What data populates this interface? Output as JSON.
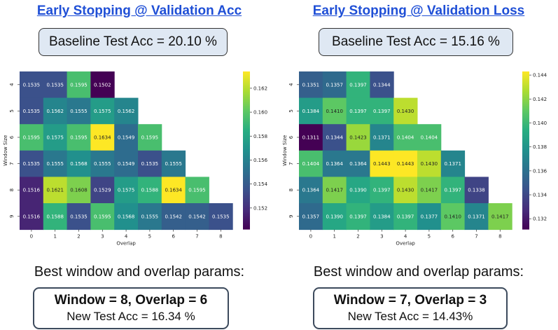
{
  "panels": [
    {
      "heading": "Early Stopping @ Validation Acc",
      "baseline": "Baseline Test Acc = 20.10 %",
      "best_title": "Best window and overlap params:",
      "result_line1": "Window = 8, Overlap = 6",
      "result_line2": "New Test Acc = 16.34 %"
    },
    {
      "heading": "Early Stopping @ Validation Loss",
      "baseline": "Baseline Test Acc = 15.16 %",
      "best_title": "Best window and overlap params:",
      "result_line1": "Window = 7, Overlap = 3",
      "result_line2": "New Test Acc =  14.43%"
    }
  ],
  "chart_data": [
    {
      "type": "heatmap",
      "colormap": "viridis",
      "xlabel": "Overlap",
      "ylabel": "Window Size",
      "x_ticks": [
        "0",
        "1",
        "2",
        "3",
        "4",
        "5",
        "6",
        "7",
        "8"
      ],
      "y_ticks": [
        "4",
        "5",
        "6",
        "7",
        "8",
        "9"
      ],
      "values": [
        [
          "0.1535",
          "0.1535",
          "0.1595",
          "0.1502",
          null,
          null,
          null,
          null,
          null
        ],
        [
          "0.1535",
          "0.1562",
          "0.1555",
          "0.1575",
          "0.1562",
          null,
          null,
          null,
          null
        ],
        [
          "0.1595",
          "0.1575",
          "0.1595",
          "0.1634",
          "0.1549",
          "0.1595",
          null,
          null,
          null
        ],
        [
          "0.1535",
          "0.1555",
          "0.1568",
          "0.1555",
          "0.1549",
          "0.1535",
          "0.1555",
          null,
          null
        ],
        [
          "0.1516",
          "0.1621",
          "0.1608",
          "0.1529",
          "0.1575",
          "0.1588",
          "0.1634",
          "0.1595",
          null
        ],
        [
          "0.1516",
          "0.1588",
          "0.1535",
          "0.1595",
          "0.1568",
          "0.1555",
          "0.1542",
          "0.1542",
          "0.1535"
        ]
      ],
      "vmin": 0.1502,
      "vmax": 0.1634,
      "colorbar_ticks": [
        "0.152",
        "0.154",
        "0.156",
        "0.158",
        "0.160",
        "0.162"
      ]
    },
    {
      "type": "heatmap",
      "colormap": "viridis",
      "xlabel": "Overlap",
      "ylabel": "Window Size",
      "x_ticks": [
        "0",
        "1",
        "2",
        "3",
        "4",
        "5",
        "6",
        "7",
        "8"
      ],
      "y_ticks": [
        "4",
        "5",
        "6",
        "7",
        "8",
        "9"
      ],
      "values": [
        [
          "0.1351",
          "0.1357",
          "0.1397",
          "0.1344",
          null,
          null,
          null,
          null,
          null
        ],
        [
          "0.1384",
          "0.1410",
          "0.1397",
          "0.1397",
          "0.1430",
          null,
          null,
          null,
          null
        ],
        [
          "0.1311",
          "0.1344",
          "0.1423",
          "0.1371",
          "0.1404",
          "0.1404",
          null,
          null,
          null
        ],
        [
          "0.1404",
          "0.1364",
          "0.1364",
          "0.1443",
          "0.1443",
          "0.1430",
          "0.1371",
          null,
          null
        ],
        [
          "0.1364",
          "0.1417",
          "0.1390",
          "0.1397",
          "0.1430",
          "0.1417",
          "0.1397",
          "0.1338",
          null
        ],
        [
          "0.1357",
          "0.1390",
          "0.1397",
          "0.1384",
          "0.1397",
          "0.1377",
          "0.1410",
          "0.1371",
          "0.1417"
        ]
      ],
      "vmin": 0.1311,
      "vmax": 0.1443,
      "colorbar_ticks": [
        "0.132",
        "0.134",
        "0.136",
        "0.138",
        "0.140",
        "0.142",
        "0.144"
      ]
    }
  ]
}
